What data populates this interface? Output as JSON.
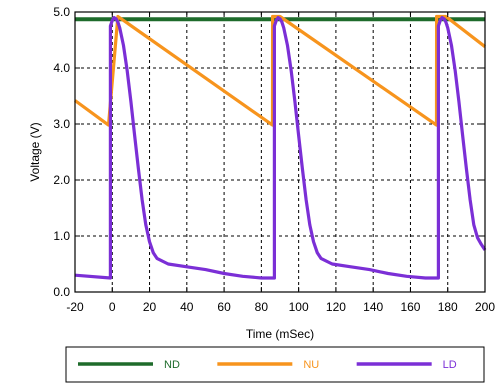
{
  "chart_data": {
    "type": "line",
    "xlabel": "Time (mSec)",
    "ylabel": "Voltage (V)",
    "xlim": [
      -20,
      200
    ],
    "ylim": [
      0,
      5
    ],
    "xticks": [
      -20,
      0,
      20,
      40,
      60,
      80,
      100,
      120,
      140,
      160,
      180,
      200
    ],
    "yticks": [
      0,
      1,
      2,
      3,
      4,
      5
    ],
    "xtick_labels": [
      "-20",
      "0",
      "20",
      "40",
      "60",
      "80",
      "100",
      "120",
      "140",
      "160",
      "180",
      "200"
    ],
    "ytick_labels": [
      "0.0",
      "1.0",
      "2.0",
      "3.0",
      "4.0",
      "5.0"
    ],
    "grid": true,
    "legend_position": "bottom",
    "series": [
      {
        "name": "ND",
        "color": "#1e6b2b",
        "x": [
          -20,
          0,
          20,
          40,
          60,
          80,
          100,
          120,
          140,
          160,
          180,
          200
        ],
        "y": [
          4.87,
          4.87,
          4.87,
          4.87,
          4.87,
          4.87,
          4.87,
          4.87,
          4.87,
          4.87,
          4.87,
          4.87
        ]
      },
      {
        "name": "NU",
        "color": "#f7941d",
        "x": [
          -20,
          -2,
          3,
          86,
          86.01,
          90,
          174,
          174.01,
          179,
          200
        ],
        "y": [
          3.42,
          2.98,
          4.92,
          2.98,
          4.92,
          4.92,
          2.98,
          4.92,
          4.92,
          4.38
        ]
      },
      {
        "name": "LD",
        "color": "#7b2fd6",
        "x": [
          -20,
          -1,
          -0.99,
          0,
          1,
          2,
          3,
          4,
          6,
          8,
          10,
          12,
          14,
          16,
          18,
          20,
          22,
          24,
          30,
          40,
          50,
          60,
          70,
          80,
          87,
          87.01,
          88,
          89,
          90,
          91,
          92,
          94,
          96,
          98,
          100,
          102,
          104,
          106,
          108,
          110,
          112,
          118,
          128,
          138,
          148,
          158,
          168,
          175,
          175.01,
          176,
          177,
          178,
          179,
          180,
          182,
          184,
          186,
          188,
          190,
          192,
          194,
          196,
          198,
          200
        ],
        "y": [
          0.3,
          0.25,
          4.75,
          4.85,
          4.9,
          4.88,
          4.82,
          4.72,
          4.4,
          3.95,
          3.4,
          2.8,
          2.2,
          1.65,
          1.2,
          0.9,
          0.7,
          0.6,
          0.5,
          0.45,
          0.4,
          0.33,
          0.28,
          0.25,
          0.25,
          4.75,
          4.85,
          4.9,
          4.88,
          4.82,
          4.72,
          4.4,
          3.95,
          3.4,
          2.8,
          2.2,
          1.65,
          1.2,
          0.9,
          0.7,
          0.6,
          0.5,
          0.45,
          0.4,
          0.33,
          0.28,
          0.25,
          0.25,
          4.75,
          4.85,
          4.9,
          4.88,
          4.82,
          4.72,
          4.4,
          3.95,
          3.4,
          2.8,
          2.2,
          1.65,
          1.2,
          0.97,
          0.85,
          0.75
        ]
      }
    ]
  }
}
